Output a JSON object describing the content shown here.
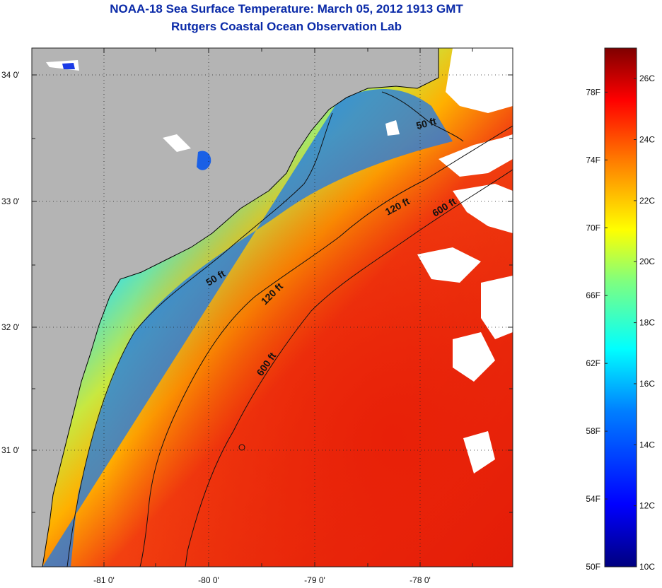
{
  "title": "NOAA-18 Sea Surface Temperature:  March 05, 2012 1913 GMT",
  "subtitle": "Rutgers Coastal Ocean Observation Lab",
  "map": {
    "lat_ticks": [
      "34 0'",
      "33 0'",
      "32 0'",
      "31 0'"
    ],
    "lon_ticks": [
      "-81 0'",
      "-80 0'",
      "-79 0'",
      "-78 0'"
    ],
    "contour_labels": [
      "50 ft",
      "120 ft",
      "600 ft",
      "50 ft",
      "120 ft",
      "600 ft"
    ],
    "colors": {
      "land": "#b4b4b4",
      "cloud": "#ffffff",
      "coast": "#000000"
    }
  },
  "colorbar": {
    "fahrenheit": [
      "78F",
      "74F",
      "70F",
      "66F",
      "62F",
      "58F",
      "54F",
      "50F"
    ],
    "celsius": [
      "26C",
      "24C",
      "22C",
      "20C",
      "18C",
      "16C",
      "14C",
      "12C",
      "10C"
    ],
    "min_c": 10,
    "max_c": 27,
    "stops": [
      "#00007f",
      "#0000ff",
      "#007fff",
      "#00ffff",
      "#7fff7f",
      "#ffff00",
      "#ff7f00",
      "#ff0000",
      "#7f0000"
    ]
  }
}
